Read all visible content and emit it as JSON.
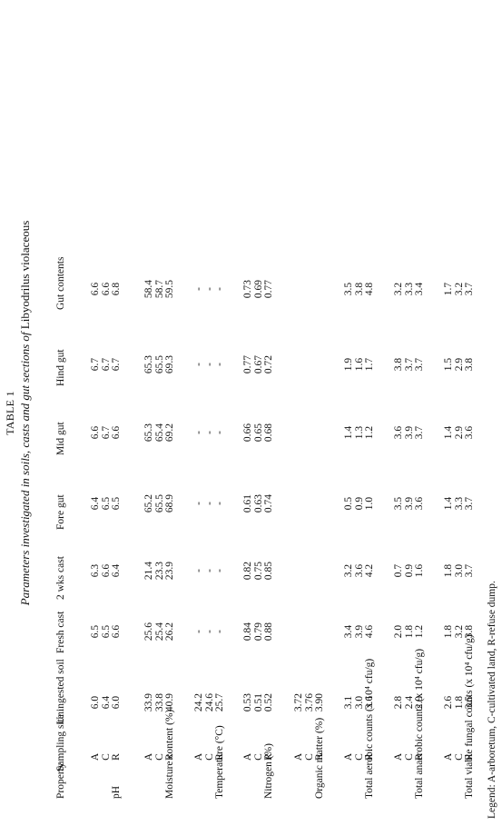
{
  "table_number": "TABLE 1",
  "title": {
    "part1": "Parameters investigated in soils, casts and gut sections of",
    "part2": "Libyodrilus violaceous"
  },
  "columns": [
    "Property",
    "Sampling site",
    "Uningested soil",
    "Fresh cast",
    "2 wks cast",
    "Fore gut",
    "Mid gut",
    "Hind gut",
    "Gut contents"
  ],
  "groups": [
    {
      "property": "pH",
      "rows": [
        {
          "site": "A",
          "values": [
            "6.0",
            "6.5",
            "6.3",
            "6.4",
            "6.6",
            "6.7",
            "6.6"
          ]
        },
        {
          "site": "C",
          "values": [
            "6.4",
            "6.5",
            "6.6",
            "6.5",
            "6.7",
            "6.7",
            "6.6"
          ]
        },
        {
          "site": "R",
          "values": [
            "6.0",
            "6.6",
            "6.4",
            "6.5",
            "6.6",
            "6.7",
            "6.8"
          ]
        }
      ]
    },
    {
      "property": "Moisture content (%)",
      "rows": [
        {
          "site": "A",
          "values": [
            "33.9",
            "25.6",
            "21.4",
            "65.2",
            "65.3",
            "65.3",
            "58.4"
          ]
        },
        {
          "site": "C",
          "values": [
            "33.8",
            "25.4",
            "23.3",
            "65.5",
            "65.4",
            "65.5",
            "58.7"
          ]
        },
        {
          "site": "R",
          "values": [
            "40.9",
            "26.2",
            "23.9",
            "68.9",
            "69.2",
            "69.3",
            "59.5"
          ]
        }
      ]
    },
    {
      "property": "Temperature (°C)",
      "rows": [
        {
          "site": "A",
          "values": [
            "24.2",
            "-",
            "-",
            "-",
            "-",
            "-",
            "-"
          ]
        },
        {
          "site": "C",
          "values": [
            "24.6",
            "-",
            "-",
            "-",
            "-",
            "-",
            "-"
          ]
        },
        {
          "site": "R",
          "values": [
            "25.7",
            "-",
            "-",
            "-",
            "-",
            "-",
            "-"
          ]
        }
      ]
    },
    {
      "property": "Nitrogen (%)",
      "rows": [
        {
          "site": "A",
          "values": [
            "0.53",
            "0.84",
            "0.82",
            "0.61",
            "0.66",
            "0.77",
            "0.73"
          ]
        },
        {
          "site": "C",
          "values": [
            "0.51",
            "0.79",
            "0.75",
            "0.63",
            "0.65",
            "0.67",
            "0.69"
          ]
        },
        {
          "site": "R",
          "values": [
            "0.52",
            "0.88",
            "0.85",
            "0.74",
            "0.68",
            "0.72",
            "0.77"
          ]
        }
      ]
    },
    {
      "property": "Organic matter (%)",
      "rows": [
        {
          "site": "A",
          "values": [
            "3.72",
            "",
            "",
            "",
            "",
            "",
            ""
          ]
        },
        {
          "site": "C",
          "values": [
            "3.76",
            "",
            "",
            "",
            "",
            "",
            ""
          ]
        },
        {
          "site": "R",
          "values": [
            "3.90",
            "",
            "",
            "",
            "",
            "",
            ""
          ]
        }
      ]
    },
    {
      "property": "Total aerobic counts (x 10⁴ cfu/g)",
      "rows": [
        {
          "site": "A",
          "values": [
            "3.1",
            "3.4",
            "3.2",
            "0.5",
            "1.4",
            "1.9",
            "3.5"
          ]
        },
        {
          "site": "C",
          "values": [
            "3.0",
            "3.9",
            "3.6",
            "0.9",
            "1.3",
            "1.6",
            "3.8"
          ]
        },
        {
          "site": "R",
          "values": [
            "3.6",
            "4.6",
            "4.2",
            "1.0",
            "1.2",
            "1.7",
            "4.8"
          ]
        }
      ]
    },
    {
      "property": "Total anaerobic counts (x 10⁴ cfu/g)",
      "rows": [
        {
          "site": "A",
          "values": [
            "2.8",
            "2.0",
            "0.7",
            "3.5",
            "3.6",
            "3.8",
            "3.2"
          ]
        },
        {
          "site": "C",
          "values": [
            "2.4",
            "1.8",
            "0.9",
            "3.9",
            "3.9",
            "3.7",
            "3.3"
          ]
        },
        {
          "site": "R",
          "values": [
            "2.9",
            "1.2",
            "1.6",
            "3.6",
            "3.7",
            "3.7",
            "3.4"
          ]
        }
      ]
    },
    {
      "property": "Total viable fungal counts (x 10⁴ cfu/g)",
      "rows": [
        {
          "site": "A",
          "values": [
            "2.6",
            "1.8",
            "1.8",
            "1.4",
            "1.4",
            "1.5",
            "1.7"
          ]
        },
        {
          "site": "C",
          "values": [
            "1.8",
            "3.2",
            "3.0",
            "3.3",
            "2.9",
            "2.9",
            "3.2"
          ]
        },
        {
          "site": "R",
          "values": [
            "3.5",
            "3.8",
            "3.7",
            "3.7",
            "3.6",
            "3.8",
            "3.7"
          ]
        }
      ]
    }
  ],
  "legend": "Legend:  A-arboretum,   C-cultivated land,   R-refuse dump."
}
